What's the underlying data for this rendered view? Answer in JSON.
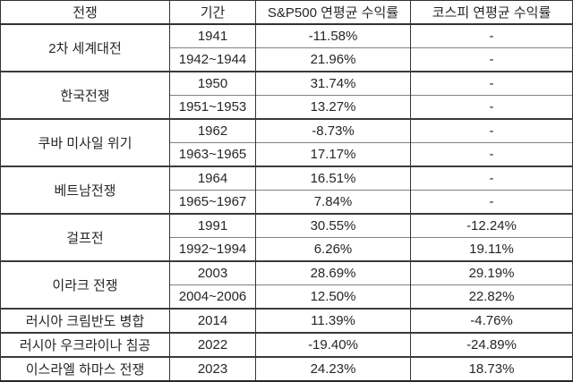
{
  "colors": {
    "background": "#ffffff",
    "text": "#262626",
    "border_strong": "#333333",
    "border_inner": "#808080"
  },
  "table": {
    "headers": {
      "war": "전쟁",
      "period": "기간",
      "sp500": "S&P500 연평균 수익률",
      "kospi": "코스피 연평균 수익률"
    },
    "groups": [
      {
        "war": "2차 세계대전",
        "rows": [
          [
            "1941",
            "-11.58%",
            "-"
          ],
          [
            "1942~1944",
            "21.96%",
            "-"
          ]
        ]
      },
      {
        "war": "한국전쟁",
        "rows": [
          [
            "1950",
            "31.74%",
            "-"
          ],
          [
            "1951~1953",
            "13.27%",
            "-"
          ]
        ]
      },
      {
        "war": "쿠바 미사일 위기",
        "rows": [
          [
            "1962",
            "-8.73%",
            "-"
          ],
          [
            "1963~1965",
            "17.17%",
            "-"
          ]
        ]
      },
      {
        "war": "베트남전쟁",
        "rows": [
          [
            "1964",
            "16.51%",
            "-"
          ],
          [
            "1965~1967",
            "7.84%",
            "-"
          ]
        ]
      },
      {
        "war": "걸프전",
        "rows": [
          [
            "1991",
            "30.55%",
            "-12.24%"
          ],
          [
            "1992~1994",
            "6.26%",
            "19.11%"
          ]
        ]
      },
      {
        "war": "이라크 전쟁",
        "rows": [
          [
            "2003",
            "28.69%",
            "29.19%"
          ],
          [
            "2004~2006",
            "12.50%",
            "22.82%"
          ]
        ]
      },
      {
        "war": "러시아 크림반도 병합",
        "rows": [
          [
            "2014",
            "11.39%",
            "-4.76%"
          ]
        ]
      },
      {
        "war": "러시아 우크라이나 침공",
        "rows": [
          [
            "2022",
            "-19.40%",
            "-24.89%"
          ]
        ]
      },
      {
        "war": "이스라엘 하마스 전쟁",
        "rows": [
          [
            "2023",
            "24.23%",
            "18.73%"
          ]
        ]
      }
    ]
  }
}
